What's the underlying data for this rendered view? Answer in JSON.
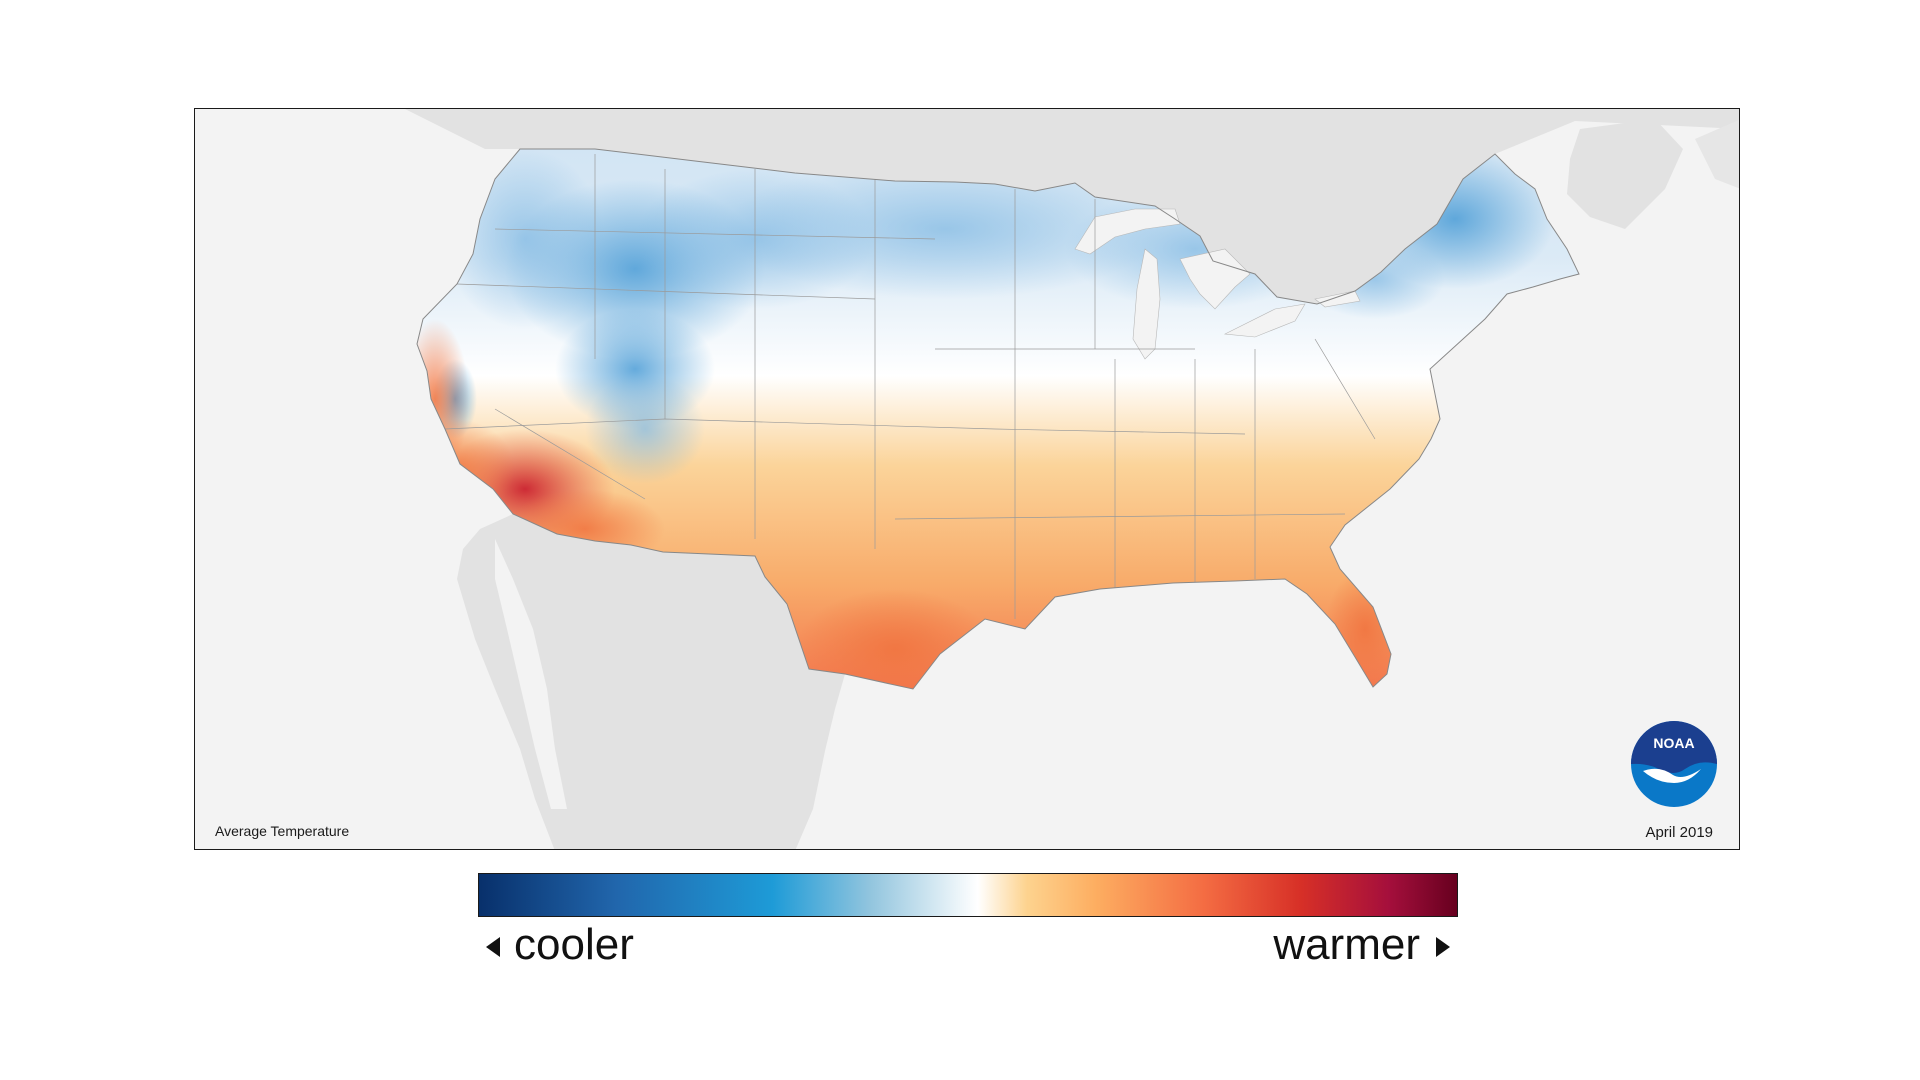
{
  "map": {
    "title": "Average Temperature",
    "date": "April 2019",
    "logo_text": "NOAA",
    "land_color": "#e2e2e2",
    "ocean_color": "#f3f3f3"
  },
  "legend": {
    "low_label": "cooler",
    "high_label": "warmer",
    "colors": [
      "#08306b",
      "#2166ac",
      "#1e9bd7",
      "#92c5de",
      "#ffffff",
      "#fdd38f",
      "#fdae61",
      "#f46d43",
      "#d73027",
      "#a50f3c",
      "#67001f"
    ]
  }
}
